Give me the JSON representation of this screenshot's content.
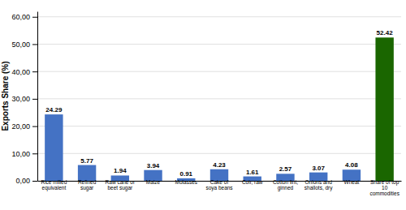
{
  "chart_data": {
    "type": "bar",
    "categories": [
      "Rice milled\nequivalent",
      "Refined\nsugar",
      "Raw cane or\nbeet sugar",
      "Maize",
      "Molasses",
      "Cake of\nsoya beans",
      "Coir, raw",
      "Cotton lint,\nginned",
      "Onions and\nshallots, dry",
      "Wheat",
      "Share of top\n10\ncommodities"
    ],
    "values": [
      24.29,
      5.77,
      1.94,
      3.94,
      0.91,
      4.23,
      1.61,
      2.57,
      3.07,
      4.08,
      52.42
    ],
    "colors": [
      "#4472C4",
      "#4472C4",
      "#4472C4",
      "#4472C4",
      "#4472C4",
      "#4472C4",
      "#4472C4",
      "#4472C4",
      "#4472C4",
      "#4472C4",
      "#1a6600"
    ],
    "ylabel": "Exports Share (%)",
    "ylim": [
      0,
      62
    ],
    "yticks": [
      {
        "value": 0,
        "label": "0,00"
      },
      {
        "value": 10,
        "label": "10,00"
      },
      {
        "value": 20,
        "label": "20,00"
      },
      {
        "value": 30,
        "label": "30,00"
      },
      {
        "value": 40,
        "label": "40,00"
      },
      {
        "value": 50,
        "label": "50,00"
      },
      {
        "value": 60,
        "label": "60,00"
      }
    ],
    "grid": true,
    "data_labels": true
  }
}
